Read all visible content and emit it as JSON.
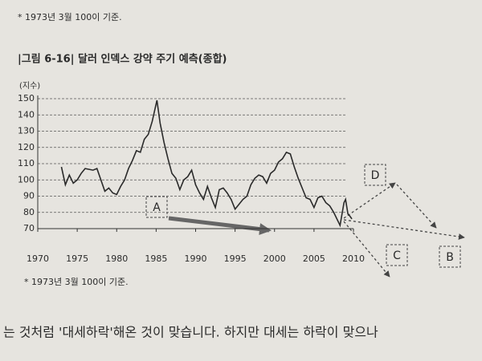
{
  "top_note": "* 1973년 3월 100이 기준.",
  "chart_data": {
    "type": "line",
    "title": "|그림 6-16| 달러 인덱스 강약 주기 예측(종합)",
    "y_label": "(지수)",
    "note": "* 1973년 3월 100이 기준.",
    "x": [
      1973.0,
      1973.5,
      1974.0,
      1974.5,
      1975.0,
      1975.5,
      1976.0,
      1977.0,
      1977.5,
      1978.0,
      1978.5,
      1979.0,
      1979.5,
      1980.0,
      1980.5,
      1981.0,
      1981.5,
      1982.0,
      1982.5,
      1983.0,
      1983.5,
      1984.0,
      1984.5,
      1985.1,
      1985.5,
      1986.0,
      1986.5,
      1987.0,
      1987.5,
      1988.0,
      1988.5,
      1989.0,
      1989.5,
      1990.0,
      1990.5,
      1991.0,
      1991.5,
      1992.0,
      1992.5,
      1993.0,
      1993.5,
      1994.0,
      1994.5,
      1995.0,
      1995.5,
      1996.0,
      1996.5,
      1997.0,
      1997.5,
      1998.0,
      1998.5,
      1999.0,
      1999.5,
      2000.0,
      2000.5,
      2001.0,
      2001.5,
      2002.0,
      2002.5,
      2003.0,
      2003.5,
      2004.0,
      2004.5,
      2005.0,
      2005.5,
      2006.0,
      2006.5,
      2007.0,
      2007.5,
      2008.0,
      2008.3,
      2008.8,
      2009.0,
      2009.3,
      2009.5,
      2009.8
    ],
    "values": [
      108,
      97,
      103,
      98,
      100,
      104,
      107,
      106,
      107,
      100,
      93,
      95,
      92,
      91,
      96,
      100,
      107,
      112,
      118,
      117,
      125,
      128,
      136,
      149,
      135,
      123,
      113,
      104,
      101,
      94,
      100,
      102,
      106,
      97,
      92,
      88,
      96,
      89,
      83,
      94,
      95,
      92,
      88,
      82,
      85,
      88,
      90,
      97,
      101,
      103,
      102,
      98,
      104,
      106,
      111,
      113,
      117,
      116,
      108,
      101,
      95,
      89,
      88,
      83,
      89,
      90,
      86,
      84,
      80,
      75,
      72,
      86,
      88,
      79,
      78,
      76
    ],
    "color": "#2a2a2a",
    "xlim": [
      1970,
      2010
    ],
    "xticks": [
      1970,
      1975,
      1980,
      1985,
      1990,
      1995,
      2000,
      2005,
      2010
    ],
    "ylim": [
      70,
      150
    ],
    "yticks": [
      70,
      80,
      90,
      100,
      110,
      120,
      130,
      140,
      150
    ],
    "grid": true,
    "annotations": [
      "A",
      "B",
      "C",
      "D"
    ]
  },
  "body_text": "는 것처럼 '대세하락'해온 것이 맞습니다. 하지만 대세는 하락이 맞으나"
}
